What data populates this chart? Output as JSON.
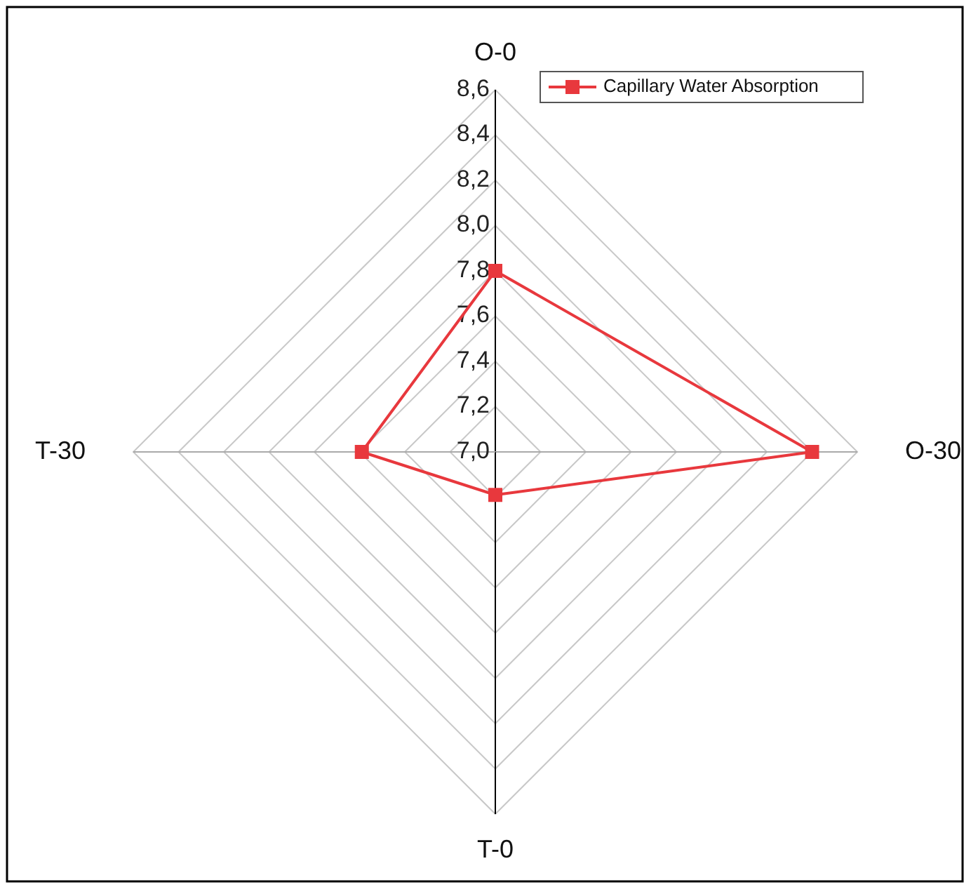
{
  "chart_data": {
    "type": "radar",
    "categories": [
      "O-0",
      "O-30",
      "T-0",
      "T-30"
    ],
    "series": [
      {
        "name": "Capillary Water Absorption",
        "color": "#e8383d",
        "values": [
          7.8,
          8.4,
          7.19,
          7.59
        ]
      }
    ],
    "ylim": [
      7.0,
      8.6
    ],
    "yticks": [
      {
        "value": 7.0,
        "label": "7,0"
      },
      {
        "value": 7.2,
        "label": "7,2"
      },
      {
        "value": 7.4,
        "label": "7,4"
      },
      {
        "value": 7.6,
        "label": "7,6"
      },
      {
        "value": 7.8,
        "label": "7,8"
      },
      {
        "value": 8.0,
        "label": "8,0"
      },
      {
        "value": 8.2,
        "label": "8,2"
      },
      {
        "value": 8.4,
        "label": "8,4"
      },
      {
        "value": 8.6,
        "label": "8,6"
      }
    ],
    "grid": true,
    "legend": "top right",
    "marker": "square",
    "line_style": "solid"
  }
}
